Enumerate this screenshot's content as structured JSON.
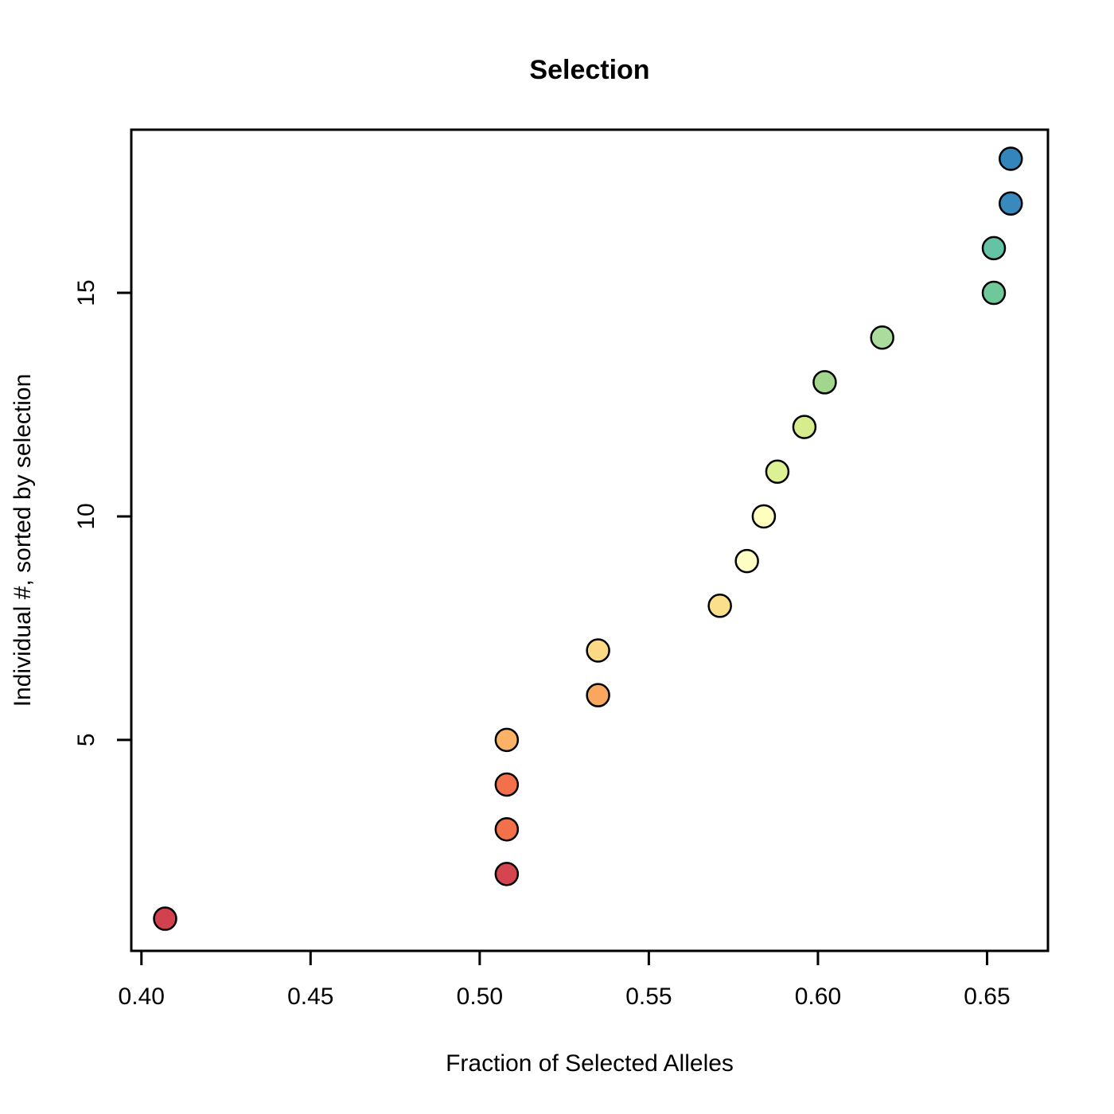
{
  "chart_data": {
    "type": "scatter",
    "title": "Selection",
    "xlabel": "Fraction of Selected Alleles",
    "ylabel": "Individual #, sorted by selection",
    "xlim": [
      0.397,
      0.668
    ],
    "ylim": [
      0.28,
      18.65
    ],
    "x_ticks": [
      0.4,
      0.45,
      0.5,
      0.55,
      0.6,
      0.65
    ],
    "x_tick_labels": [
      "0.40",
      "0.45",
      "0.50",
      "0.55",
      "0.60",
      "0.65"
    ],
    "y_ticks": [
      5,
      10,
      15
    ],
    "y_tick_labels": [
      "5",
      "10",
      "15"
    ],
    "grid": false,
    "legend": null,
    "frame_color": "#000000",
    "background_color": "#ffffff",
    "points": [
      {
        "individual": 1,
        "fraction": 0.407,
        "color": "#D2424E"
      },
      {
        "individual": 2,
        "fraction": 0.508,
        "color": "#D5454F"
      },
      {
        "individual": 3,
        "fraction": 0.508,
        "color": "#F2704A"
      },
      {
        "individual": 4,
        "fraction": 0.508,
        "color": "#F2704A"
      },
      {
        "individual": 5,
        "fraction": 0.508,
        "color": "#FBB166"
      },
      {
        "individual": 6,
        "fraction": 0.535,
        "color": "#F9A65F"
      },
      {
        "individual": 7,
        "fraction": 0.535,
        "color": "#FCDA85"
      },
      {
        "individual": 8,
        "fraction": 0.571,
        "color": "#FCDF8B"
      },
      {
        "individual": 9,
        "fraction": 0.579,
        "color": "#FEFDC3"
      },
      {
        "individual": 10,
        "fraction": 0.584,
        "color": "#FEFEBF"
      },
      {
        "individual": 11,
        "fraction": 0.588,
        "color": "#DDF094"
      },
      {
        "individual": 12,
        "fraction": 0.596,
        "color": "#D7ED8D"
      },
      {
        "individual": 13,
        "fraction": 0.602,
        "color": "#A2D68C"
      },
      {
        "individual": 14,
        "fraction": 0.619,
        "color": "#ABDC9D"
      },
      {
        "individual": 15,
        "fraction": 0.652,
        "color": "#6FC79A"
      },
      {
        "individual": 16,
        "fraction": 0.652,
        "color": "#63C3A4"
      },
      {
        "individual": 17,
        "fraction": 0.657,
        "color": "#3889BD"
      },
      {
        "individual": 18,
        "fraction": 0.657,
        "color": "#3385BB"
      }
    ],
    "point_style": {
      "radius": 14,
      "stroke": "#000000",
      "stroke_width": 2.5
    }
  }
}
